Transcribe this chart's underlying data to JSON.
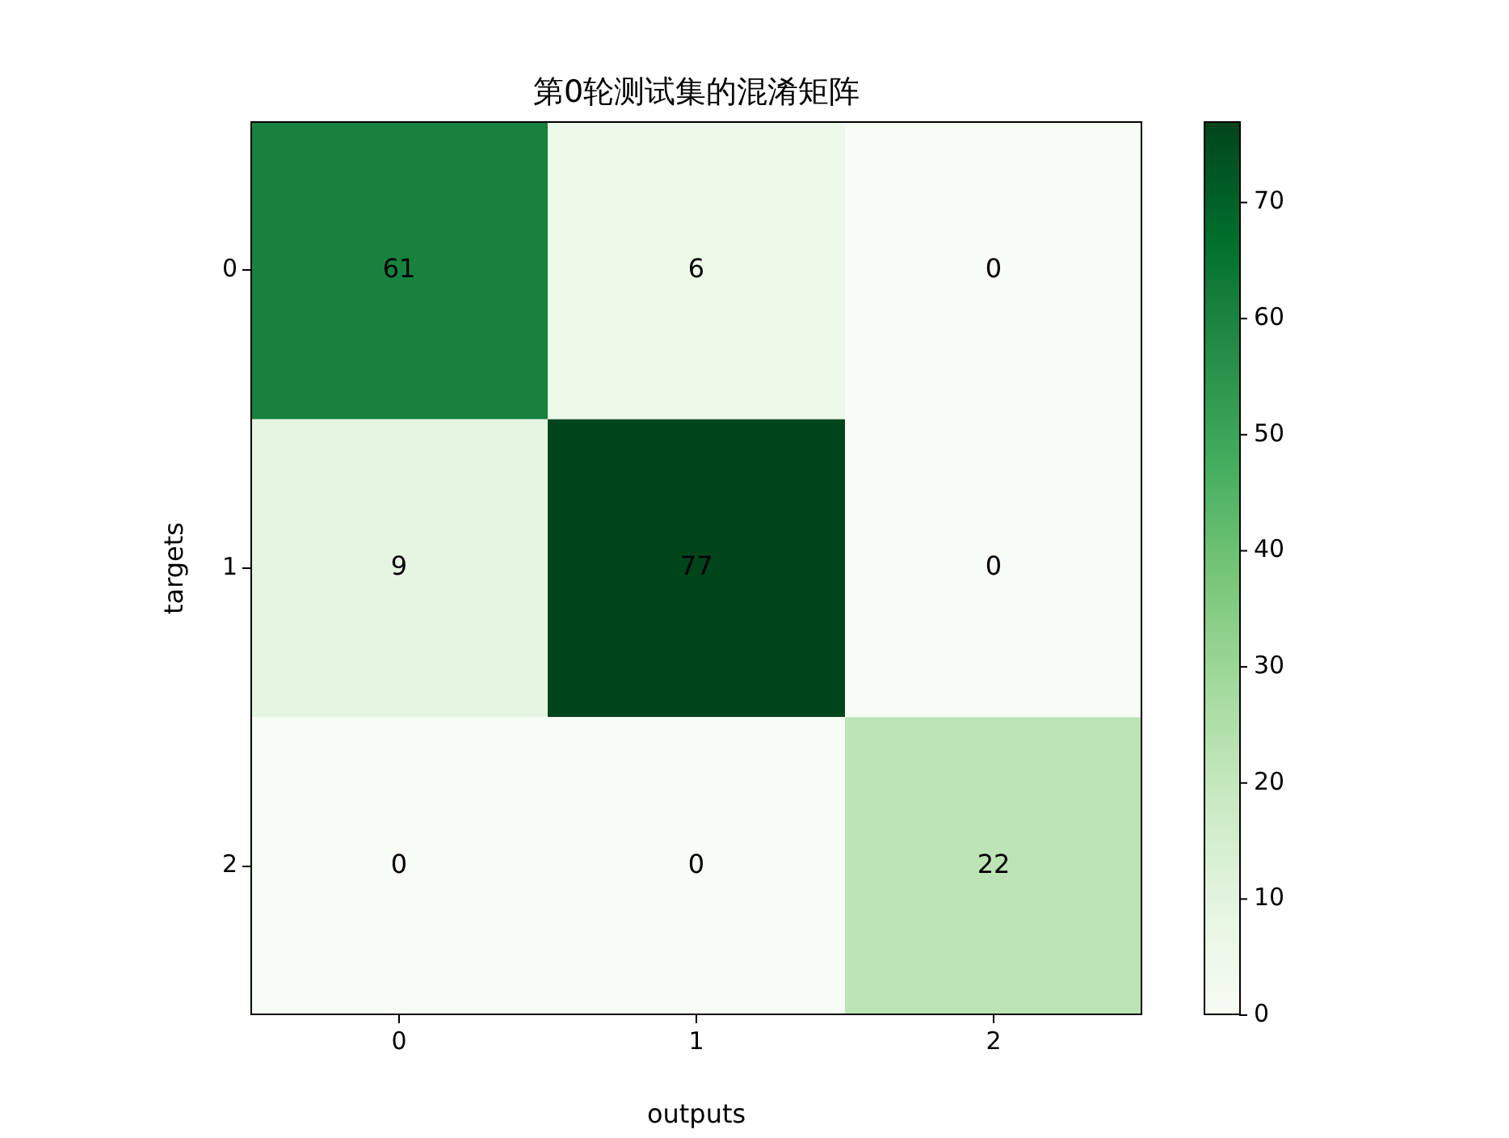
{
  "chart_data": {
    "type": "heatmap",
    "title": "第0轮测试集的混淆矩阵",
    "xlabel": "outputs",
    "ylabel": "targets",
    "categories": [
      "0",
      "1",
      "2"
    ],
    "y_categories": [
      "0",
      "1",
      "2"
    ],
    "cells": [
      [
        61,
        6,
        0
      ],
      [
        9,
        77,
        0
      ],
      [
        0,
        0,
        22
      ]
    ],
    "clim": [
      0,
      77
    ],
    "cticks": [
      0,
      10,
      20,
      30,
      40,
      50,
      60,
      70
    ],
    "data_labels": true
  }
}
